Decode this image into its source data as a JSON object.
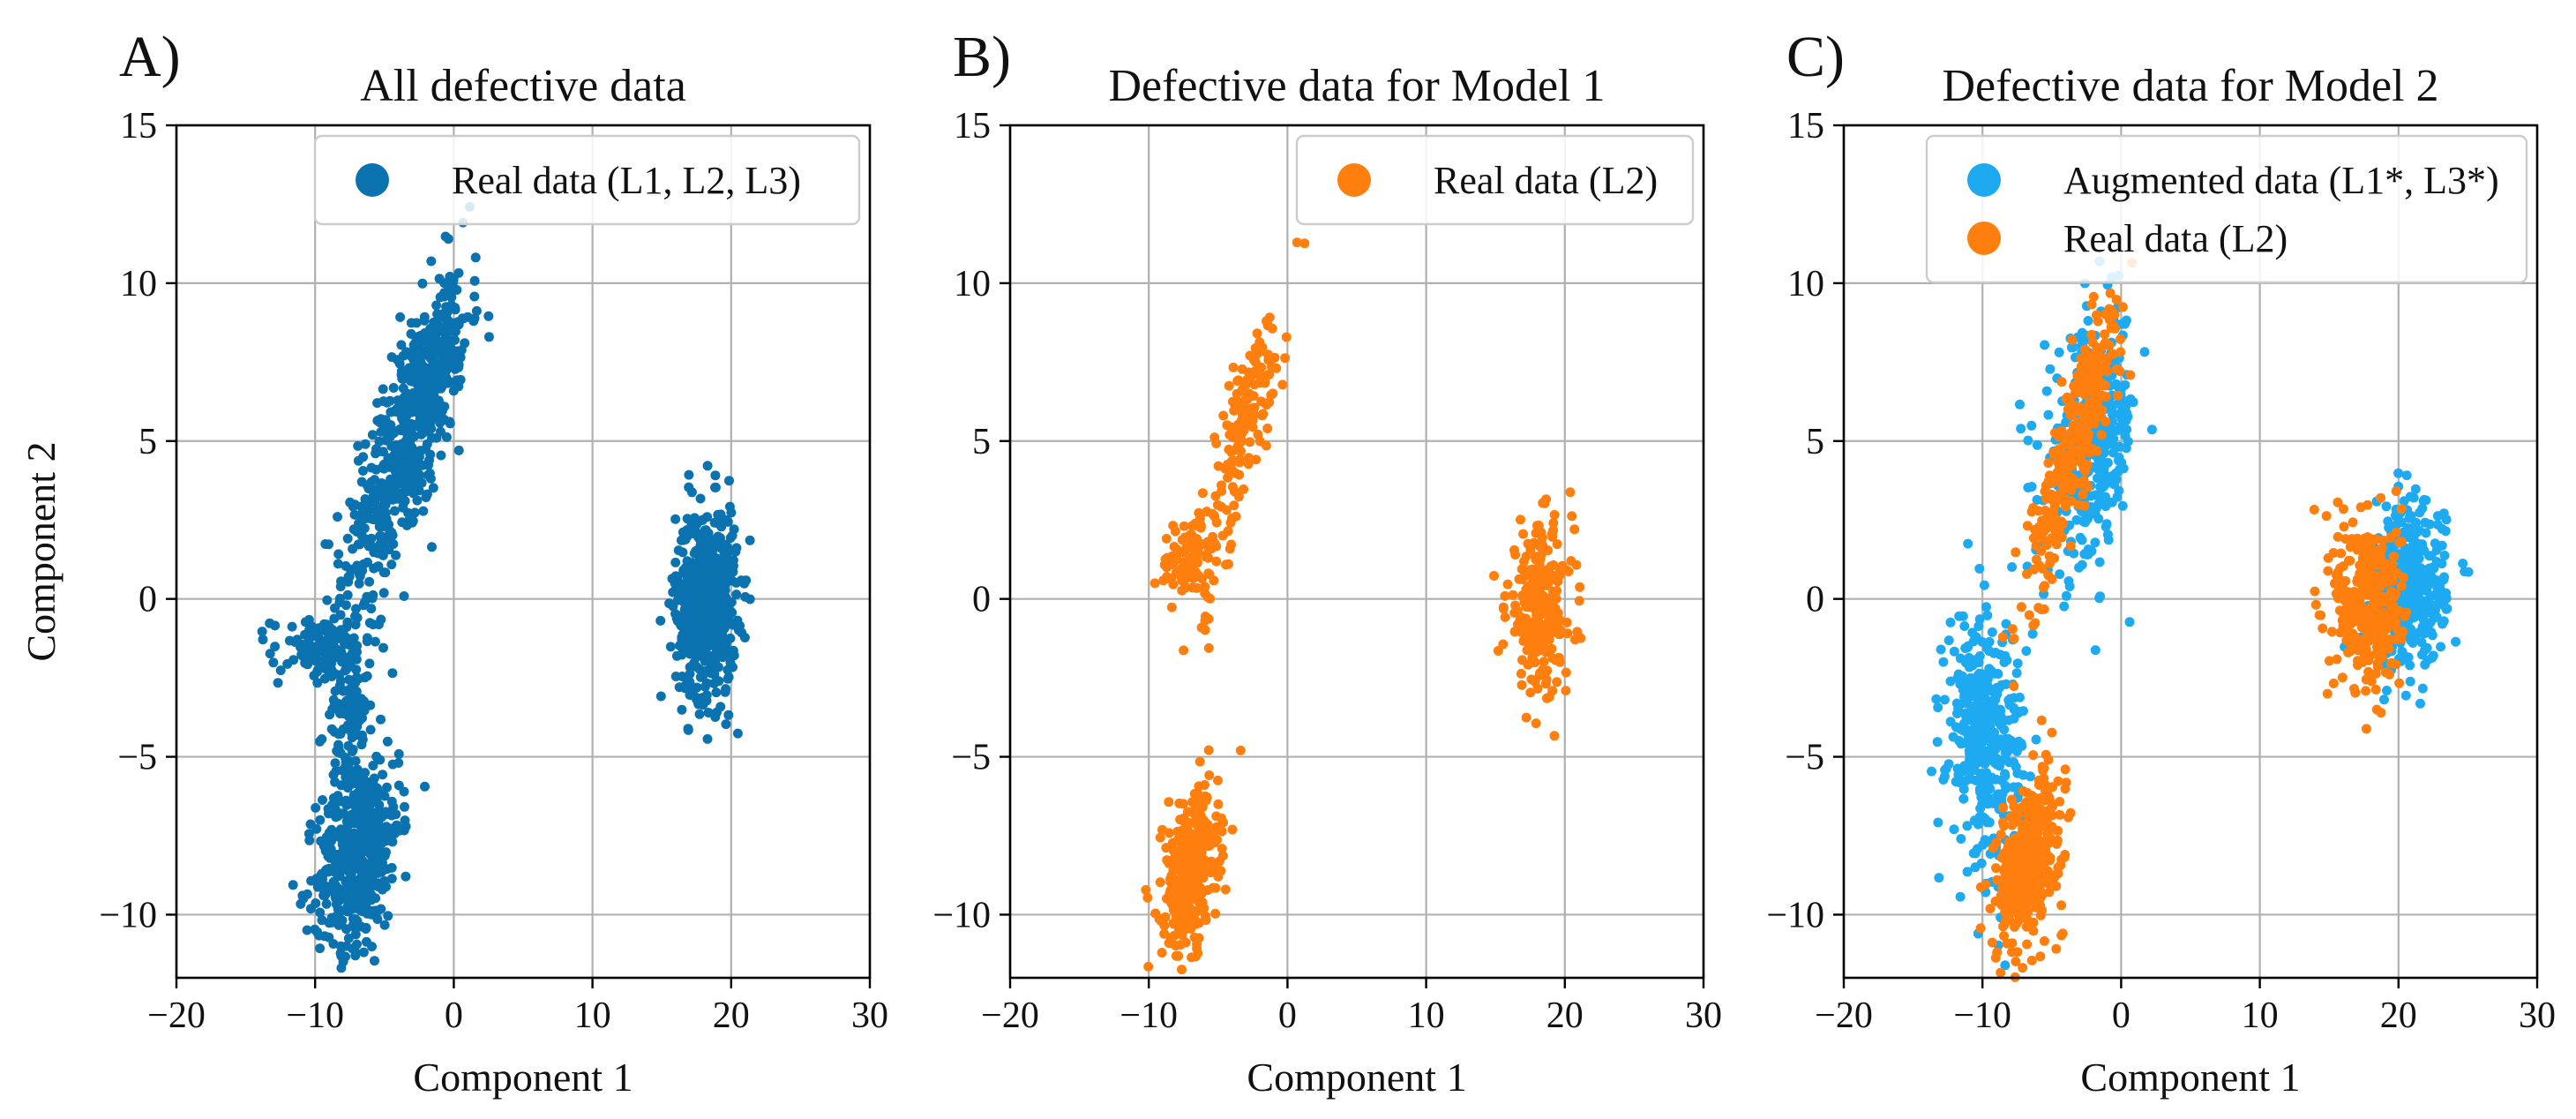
{
  "chart_data": [
    {
      "type": "scatter",
      "panel_label": "A)",
      "title": "All defective data",
      "xlabel": "Component 1",
      "ylabel": "Component 2",
      "xlim": [
        -20,
        30
      ],
      "ylim": [
        -12,
        15
      ],
      "xticks": [
        -20,
        -10,
        0,
        10,
        20,
        30
      ],
      "yticks": [
        -10,
        -5,
        0,
        5,
        10,
        15
      ],
      "xtick_labels": [
        "−20",
        "−10",
        "0",
        "10",
        "20",
        "30"
      ],
      "ytick_labels": [
        "−10",
        "−5",
        "0",
        "5",
        "10",
        "15"
      ],
      "grid": true,
      "legend_position": "top-right",
      "series": [
        {
          "name": "Real data (L1, L2, L3)",
          "color": "#0b72b0",
          "clusters": [
            {
              "cx": -3.6,
              "cy": 4.8,
              "sx": 2.2,
              "sy": 2.6,
              "rho": 0.75,
              "n": 520
            },
            {
              "cx": -1.2,
              "cy": 7.2,
              "sx": 0.9,
              "sy": 1.0,
              "rho": 0.6,
              "n": 120
            },
            {
              "cx": -9.5,
              "cy": -1.6,
              "sx": 1.8,
              "sy": 0.5,
              "rho": 0.0,
              "n": 110
            },
            {
              "cx": -7.8,
              "cy": -3.6,
              "sx": 0.8,
              "sy": 1.3,
              "rho": 0.1,
              "n": 110
            },
            {
              "cx": -6.9,
              "cy": -8.0,
              "sx": 1.5,
              "sy": 1.5,
              "rho": 0.3,
              "n": 520
            },
            {
              "cx": 18.2,
              "cy": -0.1,
              "sx": 1.1,
              "sy": 1.5,
              "rho": 0.05,
              "n": 620
            }
          ]
        }
      ]
    },
    {
      "type": "scatter",
      "panel_label": "B)",
      "title": "Defective data for Model 1",
      "xlabel": "Component 1",
      "ylabel": "",
      "xlim": [
        -20,
        30
      ],
      "ylim": [
        -12,
        15
      ],
      "xticks": [
        -20,
        -10,
        0,
        10,
        20,
        30
      ],
      "yticks": [
        -10,
        -5,
        0,
        5,
        10,
        15
      ],
      "xtick_labels": [
        "−20",
        "−10",
        "0",
        "10",
        "20",
        "30"
      ],
      "ytick_labels": [
        "−10",
        "−5",
        "0",
        "5",
        "10",
        "15"
      ],
      "grid": true,
      "legend_position": "top-right",
      "series": [
        {
          "name": "Real data (L2)",
          "color": "#ff7f0e",
          "clusters": [
            {
              "cx": -3.2,
              "cy": 5.4,
              "sx": 1.6,
              "sy": 2.2,
              "rho": 0.85,
              "n": 160
            },
            {
              "cx": -7.0,
              "cy": 1.4,
              "sx": 1.1,
              "sy": 0.7,
              "rho": 0.4,
              "n": 90
            },
            {
              "cx": -6.0,
              "cy": -1.0,
              "sx": 0.3,
              "sy": 0.3,
              "rho": 0.0,
              "n": 6
            },
            {
              "cx": -7.0,
              "cy": -8.6,
              "sx": 1.0,
              "sy": 1.2,
              "rho": 0.3,
              "n": 360
            },
            {
              "cx": 18.2,
              "cy": -0.3,
              "sx": 1.2,
              "sy": 1.3,
              "rho": 0.0,
              "n": 260
            }
          ]
        }
      ]
    },
    {
      "type": "scatter",
      "panel_label": "C)",
      "title": "Defective data for Model 2",
      "xlabel": "Component 1",
      "ylabel": "",
      "xlim": [
        -20,
        30
      ],
      "ylim": [
        -12,
        15
      ],
      "xticks": [
        -20,
        -10,
        0,
        10,
        20,
        30
      ],
      "yticks": [
        -10,
        -5,
        0,
        5,
        10,
        15
      ],
      "xtick_labels": [
        "−20",
        "−10",
        "0",
        "10",
        "20",
        "30"
      ],
      "ytick_labels": [
        "−10",
        "−5",
        "0",
        "5",
        "10",
        "15"
      ],
      "grid": true,
      "legend_position": "top-right",
      "series": [
        {
          "name": "Augmented data (L1*, L3*)",
          "color": "#1eaaf1",
          "clusters": [
            {
              "cx": -2.2,
              "cy": 4.8,
              "sx": 1.7,
              "sy": 2.0,
              "rho": 0.3,
              "n": 360
            },
            {
              "cx": -9.8,
              "cy": -4.4,
              "sx": 1.4,
              "sy": 2.0,
              "rho": -0.1,
              "n": 380
            },
            {
              "cx": 20.8,
              "cy": 0.4,
              "sx": 1.3,
              "sy": 1.3,
              "rho": 0.0,
              "n": 380
            }
          ]
        },
        {
          "name": "Real data (L2)",
          "color": "#ff7f0e",
          "clusters": [
            {
              "cx": -3.3,
              "cy": 5.0,
              "sx": 1.7,
              "sy": 2.4,
              "rho": 0.88,
              "n": 320
            },
            {
              "cx": -6.6,
              "cy": -8.2,
              "sx": 1.2,
              "sy": 1.3,
              "rho": 0.35,
              "n": 380
            },
            {
              "cx": 17.8,
              "cy": -0.2,
              "sx": 1.2,
              "sy": 1.4,
              "rho": 0.0,
              "n": 340
            }
          ]
        }
      ]
    }
  ]
}
